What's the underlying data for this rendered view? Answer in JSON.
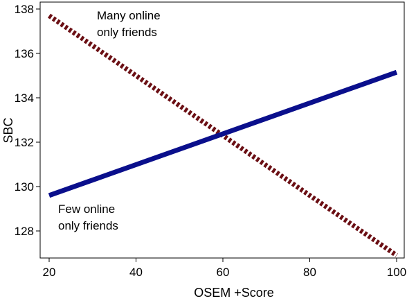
{
  "chart_data": {
    "type": "line",
    "xlabel": "OSEM +Score",
    "ylabel": "SBC",
    "xlim": [
      20,
      100
    ],
    "ylim": [
      127,
      138.3
    ],
    "xticks": [
      20,
      40,
      60,
      80,
      100
    ],
    "yticks": [
      128,
      130,
      132,
      134,
      136,
      138
    ],
    "grid": false,
    "series": [
      {
        "name": "Many online only friends",
        "style": "dotted",
        "color": "#6b0f14",
        "x": [
          20,
          100
        ],
        "y": [
          137.7,
          126.9
        ]
      },
      {
        "name": "Few online only friends",
        "style": "solid",
        "color": "#0a0f8c",
        "x": [
          20,
          100
        ],
        "y": [
          129.6,
          135.15
        ]
      }
    ],
    "annotations": [
      {
        "lines": [
          "Many online",
          "only friends"
        ]
      },
      {
        "lines": [
          "Few online",
          "only friends"
        ]
      }
    ]
  }
}
